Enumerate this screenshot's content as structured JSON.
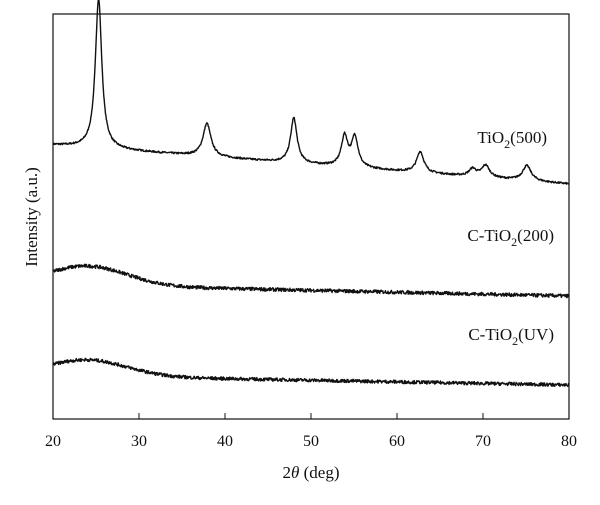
{
  "chart_data": {
    "type": "line",
    "xlabel_italic": "θ",
    "xlabel_prefix": "2",
    "xlabel_suffix": " (deg)",
    "ylabel": "Intensity (a.u.)",
    "xlim": [
      20,
      80
    ],
    "xticks": [
      "20",
      "30",
      "40",
      "50",
      "60",
      "70",
      "80"
    ],
    "grid": false,
    "series": [
      {
        "name": "TiO2(500)",
        "label_main": "TiO",
        "label_sub": "2",
        "label_tail": "(500)",
        "baseline_left": 0.3,
        "baseline_right": 0.04,
        "peaks": [
          {
            "x": 25.3,
            "height": 1.0,
            "width": 0.45
          },
          {
            "x": 37.9,
            "height": 0.22,
            "width": 0.55
          },
          {
            "x": 48.0,
            "height": 0.3,
            "width": 0.45
          },
          {
            "x": 53.9,
            "height": 0.2,
            "width": 0.45
          },
          {
            "x": 55.1,
            "height": 0.2,
            "width": 0.45
          },
          {
            "x": 62.7,
            "height": 0.14,
            "width": 0.5
          },
          {
            "x": 68.8,
            "height": 0.05,
            "width": 0.5
          },
          {
            "x": 70.3,
            "height": 0.08,
            "width": 0.55
          },
          {
            "x": 75.1,
            "height": 0.1,
            "width": 0.6
          }
        ]
      },
      {
        "name": "C-TiO2(200)",
        "label_main": "C-TiO",
        "label_sub": "2",
        "label_tail": "(200)",
        "broad_center": 24,
        "broad_height": 0.18,
        "baseline_left": 0.18,
        "baseline_right": 0.0
      },
      {
        "name": "C-TiO2(UV)",
        "label_main": "C-TiO",
        "label_sub": "2",
        "label_tail": "(UV)",
        "broad_center": 24,
        "broad_height": 0.16,
        "baseline_left": 0.16,
        "baseline_right": 0.0
      }
    ]
  }
}
